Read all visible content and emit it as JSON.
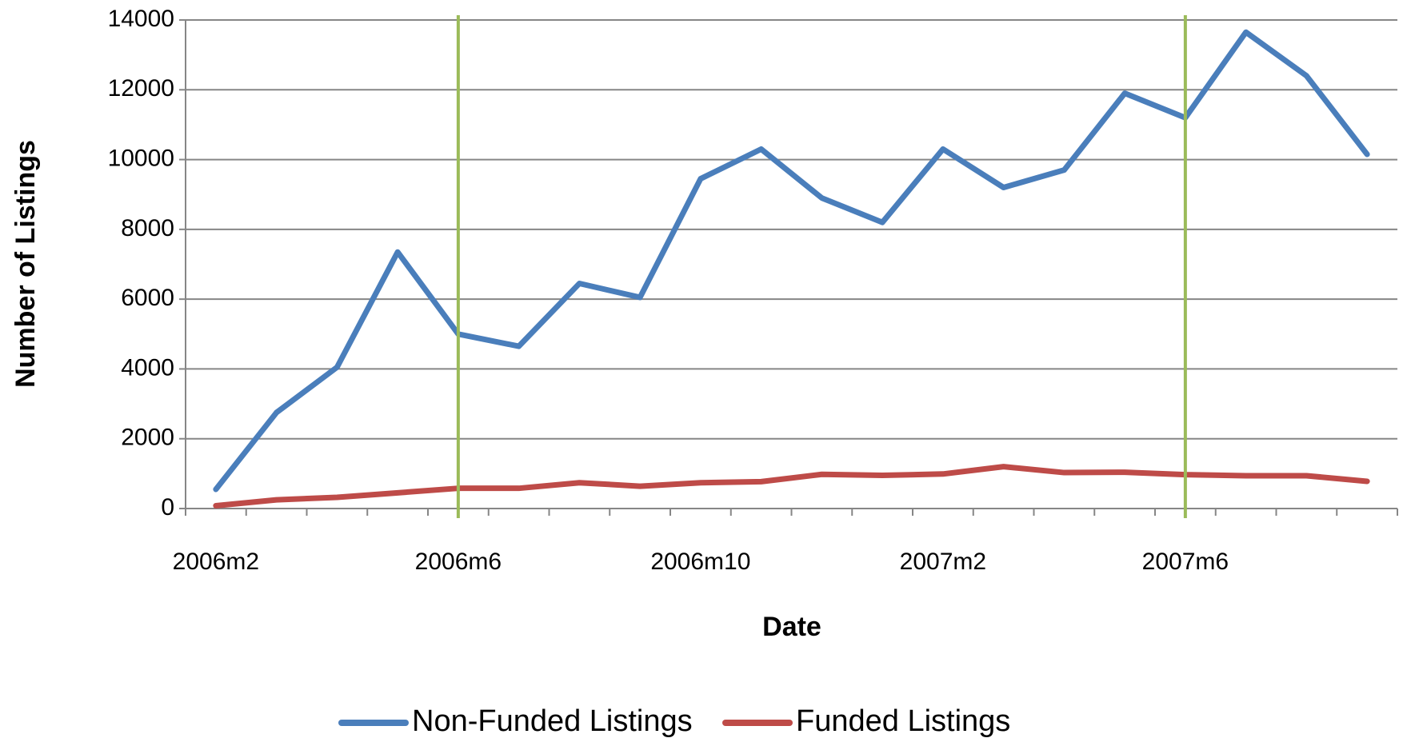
{
  "chart_data": {
    "type": "line",
    "xlabel": "Date",
    "ylabel": "Number of Listings",
    "categories": [
      "2006m2",
      null,
      null,
      null,
      "2006m6",
      null,
      null,
      null,
      "2006m10",
      null,
      null,
      null,
      "2007m2",
      null,
      null,
      null,
      "2007m6",
      null,
      null,
      null
    ],
    "series": [
      {
        "name": "Non-Funded Listings",
        "color": "#4a7ebb",
        "values": [
          550,
          2750,
          4050,
          7350,
          5000,
          4650,
          6450,
          6050,
          9450,
          10300,
          8900,
          8200,
          10300,
          9200,
          9700,
          11900,
          11200,
          13650,
          12400,
          10150
        ]
      },
      {
        "name": "Funded Listings",
        "color": "#be4b48",
        "values": [
          80,
          250,
          320,
          450,
          580,
          580,
          740,
          640,
          740,
          770,
          980,
          950,
          990,
          1200,
          1030,
          1040,
          970,
          940,
          940,
          780
        ]
      }
    ],
    "reference_lines": {
      "color": "#9bbb59",
      "categories": [
        "2006m6",
        "2007m6"
      ]
    },
    "ylim": [
      0,
      14000
    ],
    "yticks": [
      0,
      2000,
      4000,
      6000,
      8000,
      10000,
      12000,
      14000
    ],
    "grid": true,
    "legend": "bottom"
  }
}
